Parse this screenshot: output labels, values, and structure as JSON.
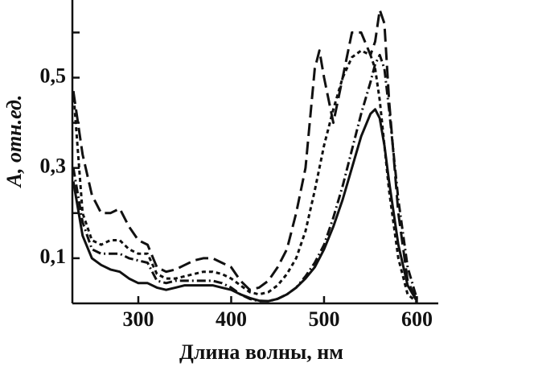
{
  "chart_data": {
    "type": "line",
    "xlabel": "Длина волны,  нм",
    "ylabel": "A,  отн.ед.",
    "xlim": [
      229,
      623
    ],
    "ylim": [
      0,
      0.672
    ],
    "xticks": [
      300,
      400,
      500,
      600
    ],
    "yticks": [
      {
        "value": 0.1,
        "label": "0,1"
      },
      {
        "value": 0.3,
        "label": "0,3"
      },
      {
        "value": 0.5,
        "label": "0,5"
      }
    ],
    "yminor": [
      0.2,
      0.4,
      0.6
    ],
    "x": [
      230,
      240,
      250,
      260,
      270,
      280,
      290,
      300,
      310,
      320,
      330,
      340,
      350,
      360,
      370,
      380,
      390,
      400,
      410,
      420,
      430,
      440,
      450,
      460,
      470,
      480,
      490,
      495,
      500,
      510,
      520,
      530,
      540,
      550,
      555,
      560,
      565,
      570,
      580,
      590,
      600
    ],
    "series": [
      {
        "color": "#111111",
        "dash": "none",
        "values": [
          0.27,
          0.15,
          0.1,
          0.085,
          0.075,
          0.07,
          0.055,
          0.045,
          0.045,
          0.035,
          0.03,
          0.035,
          0.04,
          0.04,
          0.04,
          0.04,
          0.035,
          0.03,
          0.02,
          0.012,
          0.006,
          0.005,
          0.01,
          0.02,
          0.035,
          0.055,
          0.08,
          0.1,
          0.12,
          0.17,
          0.23,
          0.3,
          0.37,
          0.42,
          0.43,
          0.41,
          0.35,
          0.27,
          0.13,
          0.04,
          0.005
        ]
      },
      {
        "color": "#111111",
        "dash": "16 7",
        "values": [
          0.47,
          0.33,
          0.24,
          0.2,
          0.2,
          0.21,
          0.17,
          0.14,
          0.13,
          0.08,
          0.07,
          0.075,
          0.085,
          0.095,
          0.1,
          0.1,
          0.09,
          0.08,
          0.05,
          0.03,
          0.035,
          0.05,
          0.08,
          0.12,
          0.2,
          0.3,
          0.52,
          0.56,
          0.5,
          0.4,
          0.5,
          0.6,
          0.6,
          0.55,
          0.58,
          0.65,
          0.62,
          0.45,
          0.2,
          0.05,
          0.005
        ]
      },
      {
        "color": "#111111",
        "dash": "5 4",
        "values": [
          0.47,
          0.2,
          0.14,
          0.13,
          0.14,
          0.14,
          0.12,
          0.11,
          0.11,
          0.065,
          0.055,
          0.055,
          0.06,
          0.065,
          0.07,
          0.07,
          0.065,
          0.055,
          0.04,
          0.025,
          0.02,
          0.025,
          0.04,
          0.065,
          0.1,
          0.16,
          0.25,
          0.3,
          0.35,
          0.43,
          0.5,
          0.545,
          0.56,
          0.55,
          0.52,
          0.45,
          0.35,
          0.25,
          0.1,
          0.02,
          0.003
        ]
      },
      {
        "color": "#111111",
        "dash": "11 4 2 4",
        "values": [
          0.3,
          0.18,
          0.12,
          0.11,
          0.11,
          0.11,
          0.1,
          0.095,
          0.09,
          0.05,
          0.045,
          0.05,
          0.05,
          0.05,
          0.05,
          0.05,
          0.045,
          0.035,
          0.02,
          0.01,
          0.005,
          0.005,
          0.01,
          0.02,
          0.035,
          0.06,
          0.09,
          0.11,
          0.13,
          0.19,
          0.26,
          0.34,
          0.42,
          0.49,
          0.53,
          0.55,
          0.52,
          0.43,
          0.23,
          0.08,
          0.01
        ]
      }
    ]
  }
}
